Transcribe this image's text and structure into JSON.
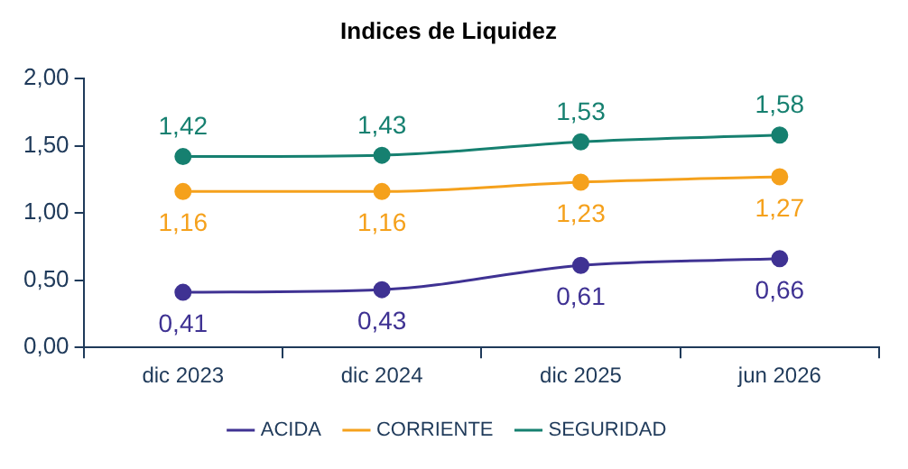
{
  "chart_data": {
    "type": "line",
    "title": "Indices de Liquidez",
    "categories": [
      "dic 2023",
      "dic 2024",
      "dic 2025",
      "jun 2026"
    ],
    "series": [
      {
        "name": "ACIDA",
        "color": "#3f3293",
        "values": [
          0.41,
          0.43,
          0.61,
          0.66
        ],
        "value_labels": [
          "0,41",
          "0,43",
          "0,61",
          "0,66"
        ]
      },
      {
        "name": "CORRIENTE",
        "color": "#f5a11c",
        "values": [
          1.16,
          1.16,
          1.23,
          1.27
        ],
        "value_labels": [
          "1,16",
          "1,16",
          "1,23",
          "1,27"
        ]
      },
      {
        "name": "SEGURIDAD",
        "color": "#168070",
        "values": [
          1.42,
          1.43,
          1.53,
          1.58
        ],
        "value_labels": [
          "1,42",
          "1,43",
          "1,53",
          "1,58"
        ]
      }
    ],
    "ylim": [
      0,
      2
    ],
    "yticks": [
      {
        "value": 0,
        "label": "0,00"
      },
      {
        "value": 0.5,
        "label": "0,50"
      },
      {
        "value": 1,
        "label": "1,00"
      },
      {
        "value": 1.5,
        "label": "1,50"
      },
      {
        "value": 2,
        "label": "2,00"
      }
    ],
    "grid": false,
    "legend": "bottom",
    "marker": "circle",
    "line_style": "solid"
  }
}
